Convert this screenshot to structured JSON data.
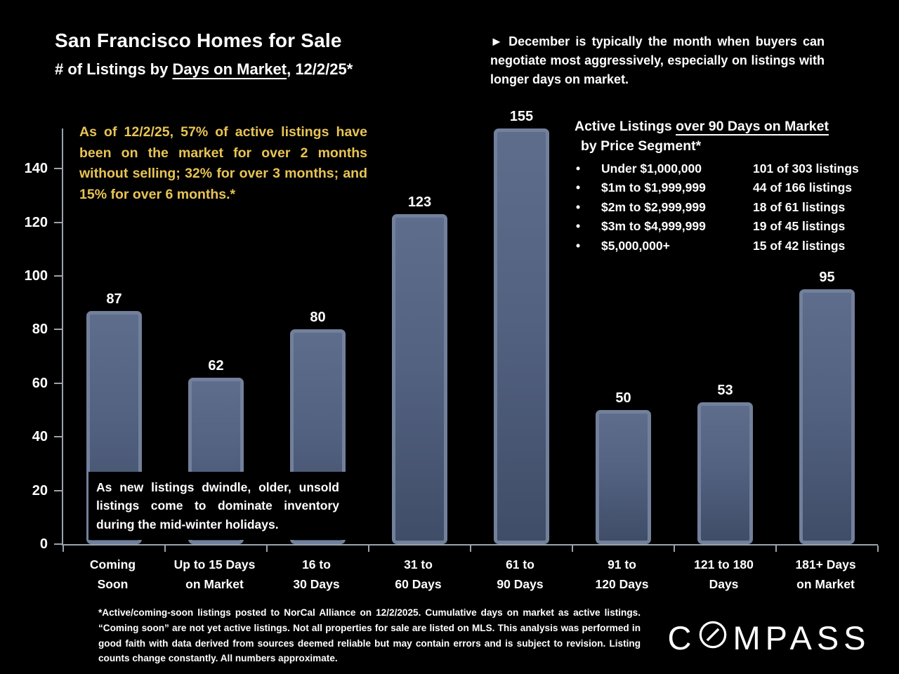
{
  "header": {
    "title": "San Francisco Homes for Sale",
    "subtitle_prefix": "# of Listings by ",
    "subtitle_underlined": "Days on Market",
    "subtitle_suffix": ", 12/2/25*"
  },
  "callouts": {
    "december_note": "► December is typically the month when buyers can negotiate most aggressively, especially on listings with longer days on market.",
    "yellow_note": "As of 12/2/25, 57% of active listings have been on the market for over 2 months without selling; 32% for over 3 months; and 15% for over 6 months.*",
    "inventory_note": "As new listings dwindle, older, unsold listings come to dominate inventory during the mid-winter holidays."
  },
  "segment_panel": {
    "heading_prefix": "Active Listings ",
    "heading_underlined": "over 90 Days on Market",
    "heading_line2": "by Price Segment*",
    "bullet": "•",
    "rows": [
      {
        "label": "Under $1,000,000",
        "count": "101 of 303 listings"
      },
      {
        "label": "$1m to $1,999,999",
        "count": "44 of 166 listings"
      },
      {
        "label": "$2m to $2,999,999",
        "count": "18 of 61 listings"
      },
      {
        "label": "$3m to $4,999,999",
        "count": "19 of 45 listings"
      },
      {
        "label": "$5,000,000+",
        "count": "15 of 42 listings"
      }
    ]
  },
  "chart_data": {
    "type": "bar",
    "title": "San Francisco Homes for Sale — # of Listings by Days on Market, 12/2/25*",
    "categories": [
      "Coming\nSoon",
      "Up to 15 Days\non  Market",
      "16 to\n30 Days",
      "31 to\n60 Days",
      "61 to\n90 Days",
      "91 to\n120 Days",
      "121 to 180\nDays",
      "181+ Days\non Market"
    ],
    "values": [
      87,
      62,
      80,
      123,
      155,
      50,
      53,
      95
    ],
    "xlabel": "",
    "ylabel": "",
    "ylim": [
      0,
      155
    ],
    "yticks": [
      0,
      20,
      40,
      60,
      80,
      100,
      120,
      140
    ],
    "grid": false,
    "legend": "none",
    "value_labels_shown": true
  },
  "footnote": "*Active/coming-soon listings posted to NorCal Alliance on 12/2/2025. Cumulative days on market as active listings. “Coming soon” are not yet active listings. Not all properties for sale are listed on MLS. This analysis was performed in good faith with data derived from sources deemed reliable but may contain errors and is subject to revision. Listing counts change constantly. All numbers approximate.",
  "brand": {
    "name": "COMPASS",
    "logo_prefix": "C",
    "logo_suffix": "MPASS"
  },
  "colors": {
    "background": "#000000",
    "text": "#FFFFFF",
    "accent_yellow": "#E8C455",
    "bar_rim": "#72809B",
    "bar_face_top": "#5E6D8C",
    "bar_face_bottom": "#3F4D68",
    "axis": "#9AA3AD"
  }
}
